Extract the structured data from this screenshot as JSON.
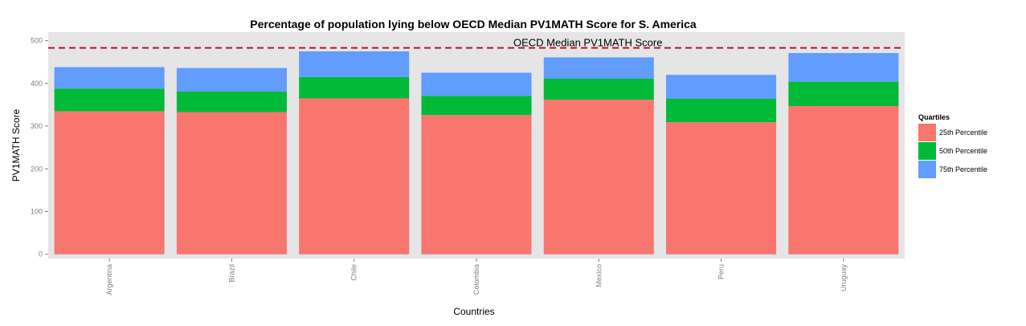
{
  "chart_data": {
    "type": "bar",
    "title": "Percentage of population lying below OECD Median PV1MATH Score for S. America",
    "xlabel": "Countries",
    "ylabel": "PV1MATH Score",
    "ylim": [
      -10,
      520
    ],
    "yticks": [
      0,
      100,
      200,
      300,
      400,
      500
    ],
    "categories": [
      "Argentina",
      "Brazil",
      "Chile",
      "Colombia",
      "Mexico",
      "Peru",
      "Uruguay"
    ],
    "legend": {
      "title": "Quartiles",
      "position": "right"
    },
    "series": [
      {
        "name": "25th Percentile",
        "color": "#F8766D",
        "values": [
          335,
          333,
          365,
          326,
          362,
          309,
          347
        ]
      },
      {
        "name": "50th Percentile",
        "color": "#00BA38",
        "values": [
          388,
          381,
          415,
          371,
          411,
          364,
          404
        ]
      },
      {
        "name": "75th Percentile",
        "color": "#619CFF",
        "values": [
          438,
          436,
          475,
          425,
          461,
          420,
          471
        ]
      }
    ],
    "reference_line": {
      "label": "OECD Median PV1MATH Score",
      "value": 483,
      "color": "#B2182B",
      "style": "dashed"
    },
    "panel_background": "#E5E5E5",
    "grid": false
  }
}
